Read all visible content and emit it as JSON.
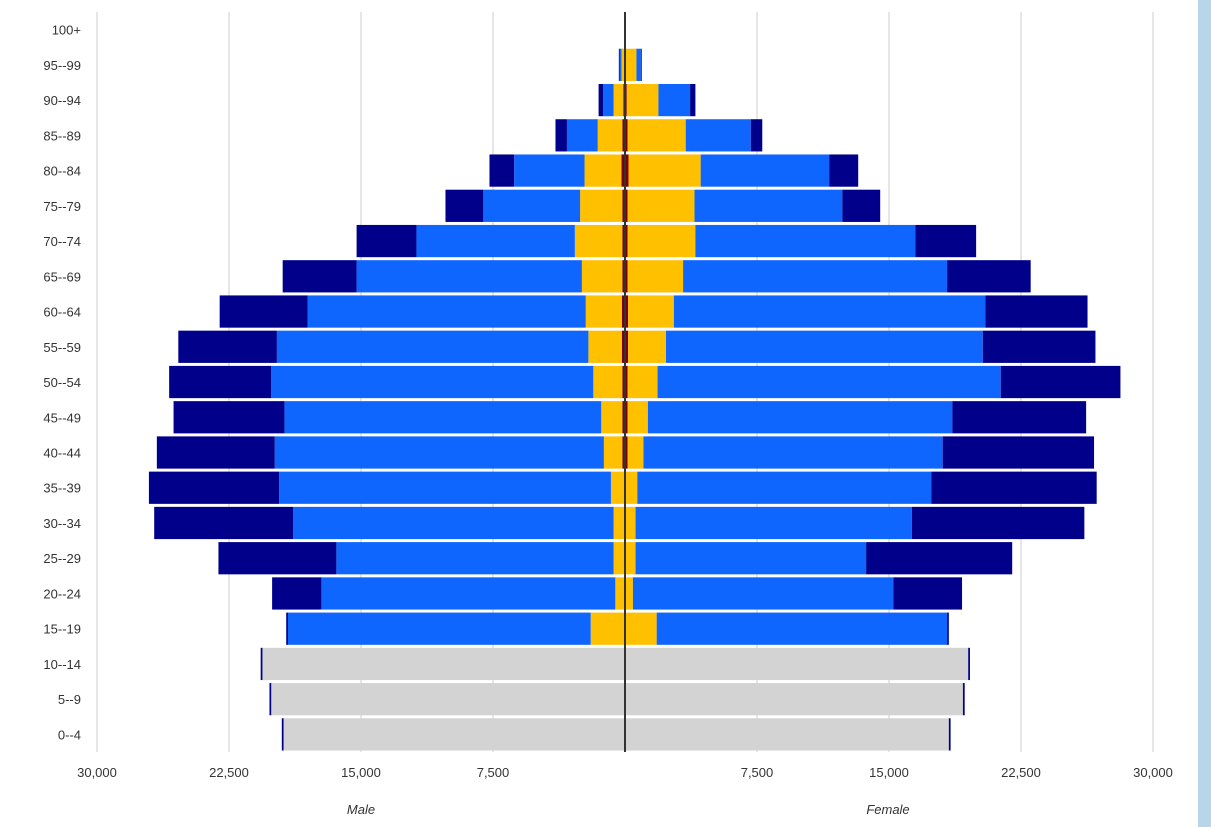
{
  "chart_data": {
    "type": "bar",
    "orientation": "horizontal-population-pyramid",
    "title": "",
    "categories": [
      "0--4",
      "5--9",
      "10--14",
      "15--19",
      "20--24",
      "25--29",
      "30--34",
      "35--39",
      "40--44",
      "45--49",
      "50--54",
      "55--59",
      "60--64",
      "65--69",
      "70--74",
      "75--79",
      "80--84",
      "85--89",
      "90--94",
      "95--99",
      "100+"
    ],
    "xlabel_left": "Male",
    "xlabel_right": "Female",
    "xlim": [
      -30000,
      30000
    ],
    "xticks": [
      -30000,
      -22500,
      -15000,
      -7500,
      0,
      7500,
      15000,
      22500,
      30000
    ],
    "xtick_labels": [
      "30,000",
      "22,500",
      "15,000",
      "7,500",
      "",
      "7,500",
      "15,000",
      "22,500",
      "30,000"
    ],
    "grid": true,
    "legend": "none",
    "series": [
      {
        "color": "#d3d3d3",
        "male": [
          19400,
          20100,
          20600,
          0,
          0,
          0,
          0,
          0,
          0,
          0,
          0,
          0,
          0,
          0,
          0,
          0,
          0,
          0,
          0,
          0,
          0
        ],
        "female": [
          18400,
          19200,
          19500,
          0,
          0,
          0,
          0,
          0,
          0,
          0,
          0,
          0,
          0,
          0,
          0,
          0,
          0,
          0,
          0,
          0,
          0
        ]
      },
      {
        "color": "#7f0000",
        "male": [
          0,
          0,
          0,
          0,
          0,
          0,
          0,
          0,
          150,
          150,
          150,
          180,
          180,
          150,
          150,
          150,
          200,
          150,
          100,
          50,
          0
        ],
        "female": [
          0,
          0,
          0,
          0,
          0,
          0,
          0,
          0,
          150,
          150,
          150,
          180,
          180,
          150,
          150,
          150,
          200,
          150,
          100,
          50,
          0
        ]
      },
      {
        "color": "#ffc000",
        "male": [
          0,
          0,
          0,
          1950,
          550,
          650,
          650,
          800,
          1050,
          1200,
          1650,
          1900,
          2050,
          2300,
          2700,
          2400,
          2100,
          1400,
          550,
          150,
          0
        ],
        "female": [
          0,
          0,
          0,
          1800,
          450,
          600,
          600,
          700,
          900,
          1150,
          1700,
          2150,
          2600,
          3150,
          3850,
          3800,
          4100,
          3300,
          1800,
          600,
          0
        ]
      },
      {
        "color": "#0f66ff",
        "male": [
          0,
          0,
          0,
          17200,
          16700,
          15750,
          18200,
          18850,
          18700,
          18000,
          18300,
          17700,
          15800,
          12800,
          9000,
          5500,
          4000,
          1750,
          600,
          100,
          0
        ],
        "female": [
          0,
          0,
          0,
          16500,
          14800,
          13100,
          15700,
          16700,
          17000,
          17300,
          19500,
          18000,
          17700,
          15000,
          12500,
          8400,
          7300,
          3700,
          1800,
          250,
          0
        ]
      },
      {
        "color": "#00008b",
        "male": [
          100,
          100,
          100,
          100,
          2800,
          6700,
          7900,
          7400,
          6700,
          6300,
          5800,
          5600,
          5000,
          4200,
          3400,
          2150,
          1400,
          650,
          250,
          50,
          0
        ],
        "female": [
          100,
          100,
          100,
          100,
          3900,
          8300,
          9800,
          9400,
          8600,
          7600,
          6800,
          6400,
          5800,
          4750,
          3450,
          2150,
          1650,
          650,
          300,
          50,
          0
        ]
      }
    ]
  }
}
